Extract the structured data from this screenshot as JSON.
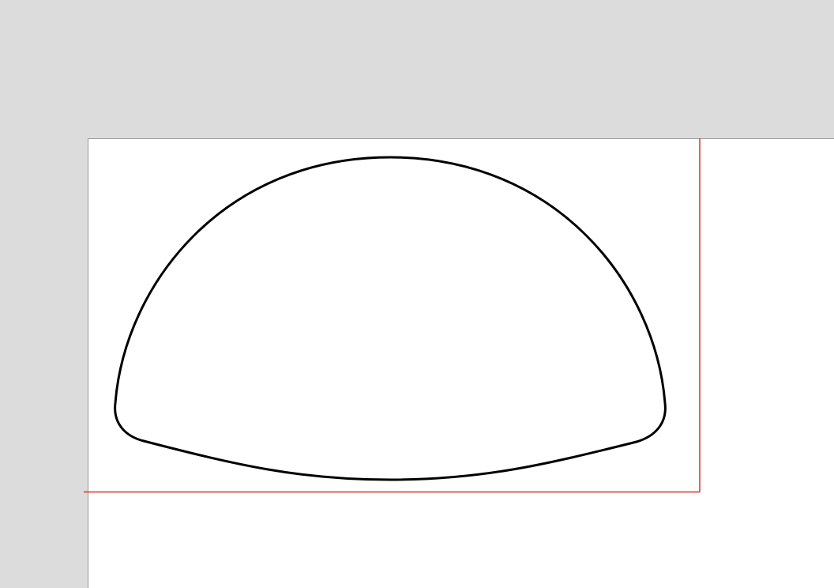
{
  "colors": {
    "workspace_background": "#dcdcdc",
    "page_background": "#ffffff",
    "page_border": "#9a9a9a",
    "shape_stroke": "#000000",
    "guide_line": "#d9302a"
  },
  "shape": {
    "kind": "rounded half-dome outline",
    "fill": "none"
  }
}
